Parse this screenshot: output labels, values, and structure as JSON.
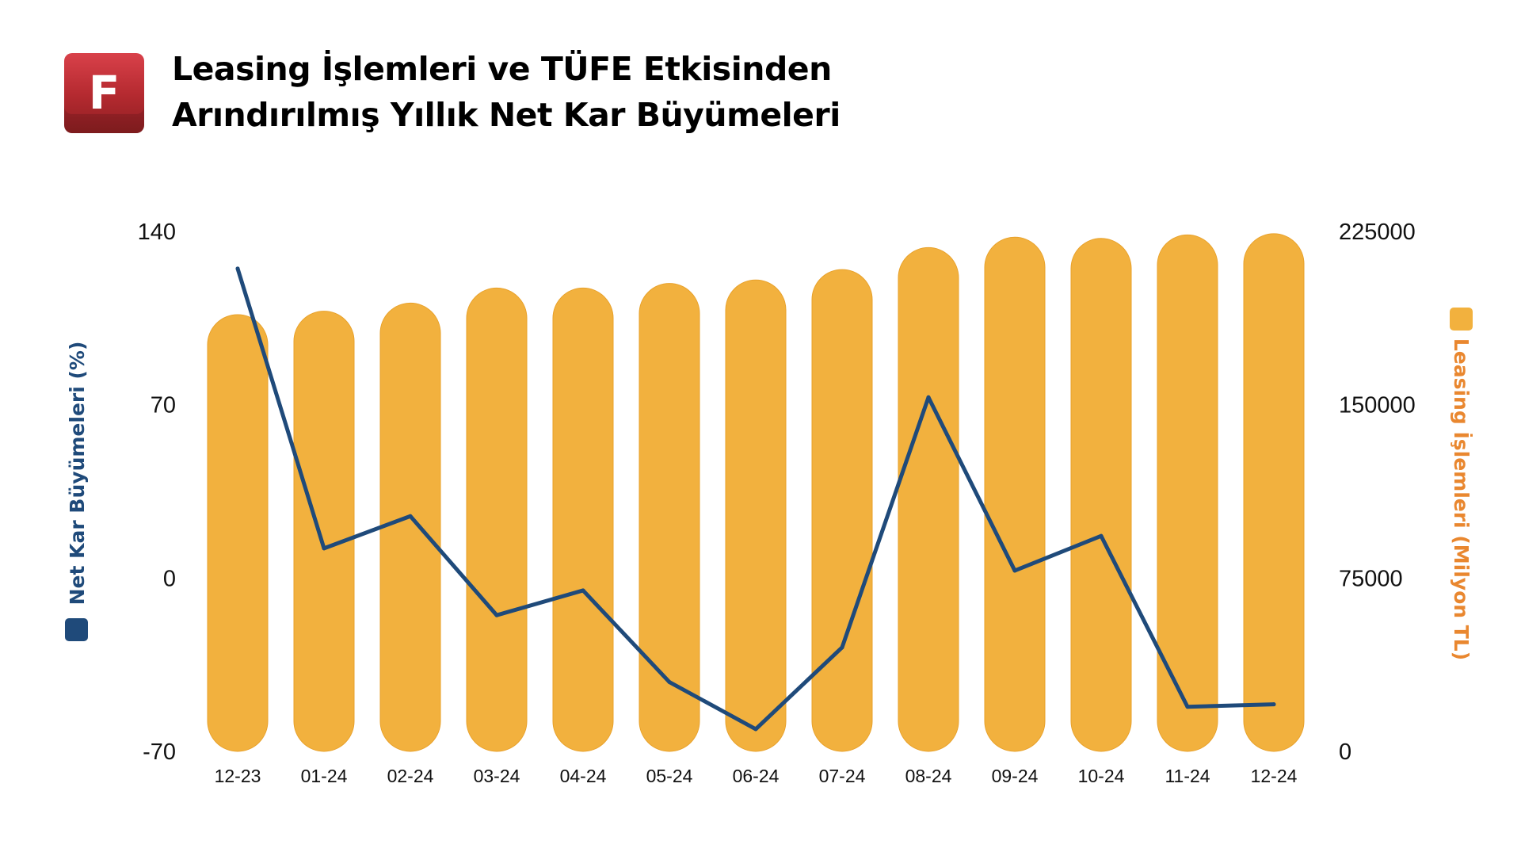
{
  "logo": {
    "letter": "F",
    "icon": "brand-logo-icon"
  },
  "title": {
    "line1": "Leasing İşlemleri ve TÜFE Etkisinden",
    "line2": "Arındırılmış Yıllık Net Kar Büyümeleri"
  },
  "colors": {
    "bar": "#f2b13e",
    "bar_stroke": "#e8a12a",
    "line": "#1f4a7a",
    "left_axis_title": "#1f4a7a",
    "right_axis_title": "#e9872f",
    "left_legend_swatch": "#1f4a7a",
    "right_legend_swatch": "#f2b13e"
  },
  "chart_data": {
    "type": "bar+line",
    "categories": [
      "12-23",
      "01-24",
      "02-24",
      "03-24",
      "04-24",
      "05-24",
      "06-24",
      "07-24",
      "08-24",
      "09-24",
      "10-24",
      "11-24",
      "12-24"
    ],
    "series": [
      {
        "name": "Leasing İşlemleri (Milyon TL)",
        "type": "bar",
        "axis": "right",
        "values": [
          189000,
          190500,
          194000,
          200500,
          200500,
          202500,
          204000,
          208500,
          218000,
          222500,
          222000,
          223500,
          224000
        ]
      },
      {
        "name": "Net Kar Büyümeleri (%)",
        "type": "line",
        "axis": "left",
        "values": [
          125,
          12,
          25,
          -15,
          -5,
          -42,
          -61,
          -28,
          73,
          3,
          17,
          -52,
          -51
        ]
      }
    ],
    "y_left": {
      "label": "Net Kar Büyümeleri (%)",
      "ticks": [
        "140",
        "70",
        "0",
        "-70"
      ],
      "ylim": [
        -70,
        140
      ]
    },
    "y_right": {
      "label": "Leasing İşlemleri (Milyon TL)",
      "ticks": [
        "225000",
        "150000",
        "75000",
        "0"
      ],
      "ylim": [
        0,
        225000
      ]
    },
    "grid": false,
    "legend": "axis-side swatches"
  }
}
